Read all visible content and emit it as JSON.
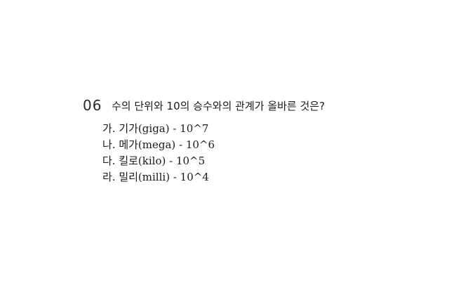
{
  "question": {
    "number": "06",
    "text": "수의 단위와 10의 승수와의 관계가 올바른 것은?"
  },
  "options": [
    "가. 기가(giga) - 10^7",
    "나. 메가(mega) - 10^6",
    "다. 킬로(kilo) - 10^5",
    "라. 밀리(milli) - 10^4"
  ]
}
